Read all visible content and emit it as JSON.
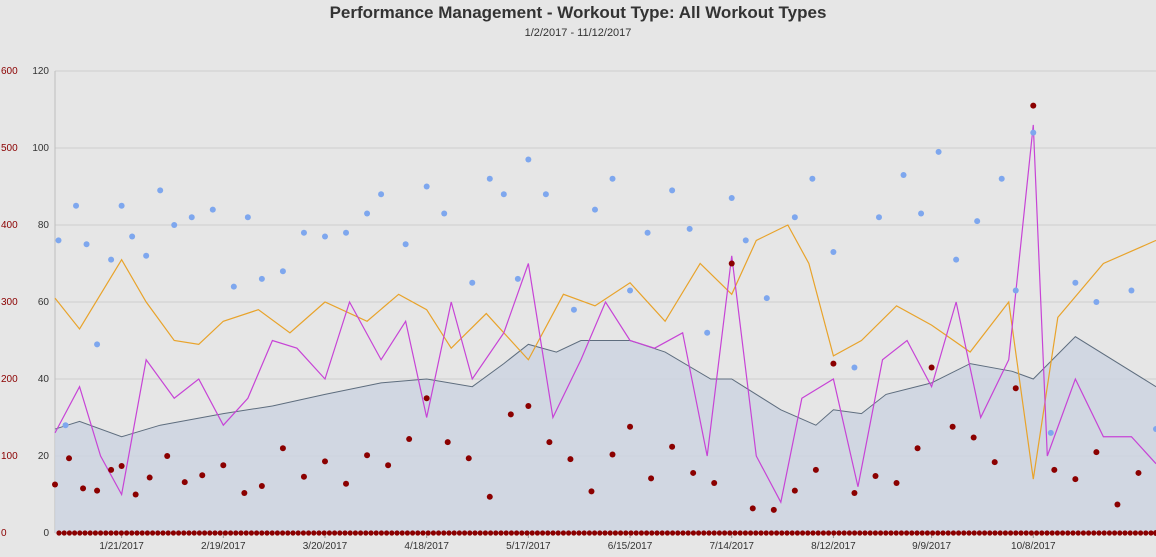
{
  "chart_data": {
    "type": "line",
    "title": "Performance Management - Workout Type: All Workout Types",
    "subtitle": "1/2/2017 - 11/12/2017",
    "x_range": [
      "1/2/2017",
      "11/12/2017"
    ],
    "x_ticks": [
      "1/21/2017",
      "2/19/2017",
      "3/20/2017",
      "4/18/2017",
      "5/17/2017",
      "6/15/2017",
      "7/14/2017",
      "8/12/2017",
      "9/9/2017",
      "10/8/2017"
    ],
    "y_left_outer": {
      "ticks": [
        "0",
        "100",
        "200",
        "300",
        "400",
        "500",
        "600"
      ],
      "range": [
        0,
        600
      ],
      "color": "#8b0000"
    },
    "y_left_inner": {
      "ticks": [
        "0",
        "20",
        "40",
        "60",
        "80",
        "100",
        "120"
      ],
      "range": [
        0,
        120
      ],
      "color": "#333333"
    },
    "grid": true,
    "colors": {
      "fitness_area": "#cdd3e0",
      "fitness_line": "#5e6d7e",
      "orange_line": "#e8a32b",
      "purple_line": "#c744d6",
      "blue_points": "#7ea7ee",
      "red_points": "#8b0000"
    },
    "series": [
      {
        "type": "area",
        "color": "#5e6d7e",
        "x": [
          "1/2/2017",
          "1/9/2017",
          "1/21/2017",
          "2/1/2017",
          "2/19/2017",
          "3/5/2017",
          "3/20/2017",
          "4/5/2017",
          "4/18/2017",
          "5/1/2017",
          "5/10/2017",
          "5/17/2017",
          "5/25/2017",
          "6/1/2017",
          "6/15/2017",
          "6/25/2017",
          "7/8/2017",
          "7/14/2017",
          "7/28/2017",
          "8/7/2017",
          "8/12/2017",
          "8/20/2017",
          "8/27/2017",
          "9/9/2017",
          "9/20/2017",
          "10/2/2017",
          "10/8/2017",
          "10/20/2017",
          "11/12/2017"
        ],
        "y": [
          27,
          29,
          25,
          28,
          31,
          33,
          36,
          39,
          40,
          38,
          44,
          49,
          47,
          50,
          50,
          47,
          40,
          40,
          32,
          28,
          32,
          31,
          36,
          39,
          44,
          42,
          40,
          51,
          38
        ]
      },
      {
        "type": "line",
        "color": "#e8a32b",
        "x": [
          "1/2/2017",
          "1/9/2017",
          "1/21/2017",
          "1/28/2017",
          "2/5/2017",
          "2/12/2017",
          "2/19/2017",
          "3/1/2017",
          "3/10/2017",
          "3/20/2017",
          "4/1/2017",
          "4/10/2017",
          "4/18/2017",
          "4/25/2017",
          "5/5/2017",
          "5/17/2017",
          "5/27/2017",
          "6/5/2017",
          "6/15/2017",
          "6/25/2017",
          "7/5/2017",
          "7/14/2017",
          "7/21/2017",
          "7/30/2017",
          "8/5/2017",
          "8/12/2017",
          "8/20/2017",
          "8/30/2017",
          "9/9/2017",
          "9/20/2017",
          "10/1/2017",
          "10/8/2017",
          "10/15/2017",
          "10/28/2017",
          "11/12/2017"
        ],
        "y": [
          61,
          53,
          71,
          60,
          50,
          49,
          55,
          58,
          52,
          60,
          55,
          62,
          58,
          48,
          57,
          45,
          62,
          59,
          65,
          55,
          70,
          62,
          76,
          80,
          70,
          46,
          50,
          59,
          54,
          47,
          60,
          14,
          56,
          70,
          76
        ]
      },
      {
        "type": "line",
        "color": "#c744d6",
        "x": [
          "1/2/2017",
          "1/9/2017",
          "1/15/2017",
          "1/21/2017",
          "1/28/2017",
          "2/5/2017",
          "2/12/2017",
          "2/19/2017",
          "2/26/2017",
          "3/5/2017",
          "3/12/2017",
          "3/20/2017",
          "3/27/2017",
          "4/5/2017",
          "4/12/2017",
          "4/18/2017",
          "4/25/2017",
          "5/1/2017",
          "5/10/2017",
          "5/17/2017",
          "5/24/2017",
          "6/1/2017",
          "6/8/2017",
          "6/15/2017",
          "6/22/2017",
          "6/30/2017",
          "7/7/2017",
          "7/14/2017",
          "7/21/2017",
          "7/28/2017",
          "8/3/2017",
          "8/12/2017",
          "8/19/2017",
          "8/26/2017",
          "9/2/2017",
          "9/9/2017",
          "9/16/2017",
          "9/23/2017",
          "10/1/2017",
          "10/8/2017",
          "10/12/2017",
          "10/20/2017",
          "10/28/2017",
          "11/5/2017",
          "11/12/2017"
        ],
        "y": [
          26,
          38,
          20,
          10,
          45,
          35,
          40,
          28,
          35,
          50,
          48,
          40,
          60,
          45,
          55,
          30,
          60,
          40,
          52,
          70,
          30,
          45,
          60,
          50,
          48,
          52,
          20,
          72,
          20,
          8,
          35,
          40,
          12,
          45,
          50,
          38,
          60,
          30,
          45,
          106,
          20,
          40,
          25,
          25,
          18
        ]
      },
      {
        "type": "scatter",
        "color": "#7ea7ee",
        "x": [
          "1/3/2017",
          "1/5/2017",
          "1/8/2017",
          "1/11/2017",
          "1/14/2017",
          "1/18/2017",
          "1/21/2017",
          "1/24/2017",
          "1/28/2017",
          "2/1/2017",
          "2/5/2017",
          "2/10/2017",
          "2/16/2017",
          "2/22/2017",
          "2/26/2017",
          "3/2/2017",
          "3/8/2017",
          "3/14/2017",
          "3/20/2017",
          "3/26/2017",
          "4/1/2017",
          "4/5/2017",
          "4/12/2017",
          "4/18/2017",
          "4/23/2017",
          "5/1/2017",
          "5/6/2017",
          "5/10/2017",
          "5/14/2017",
          "5/17/2017",
          "5/22/2017",
          "5/30/2017",
          "6/5/2017",
          "6/10/2017",
          "6/15/2017",
          "6/20/2017",
          "6/27/2017",
          "7/2/2017",
          "7/7/2017",
          "7/14/2017",
          "7/18/2017",
          "7/24/2017",
          "8/1/2017",
          "8/6/2017",
          "8/12/2017",
          "8/18/2017",
          "8/25/2017",
          "9/1/2017",
          "9/6/2017",
          "9/11/2017",
          "9/16/2017",
          "9/22/2017",
          "9/29/2017",
          "10/3/2017",
          "10/8/2017",
          "10/13/2017",
          "10/20/2017",
          "10/26/2017",
          "11/5/2017",
          "11/12/2017"
        ],
        "y": [
          76,
          28,
          85,
          75,
          49,
          71,
          85,
          77,
          72,
          89,
          80,
          82,
          84,
          64,
          82,
          66,
          68,
          78,
          77,
          78,
          83,
          88,
          75,
          90,
          83,
          65,
          92,
          88,
          66,
          97,
          88,
          58,
          84,
          92,
          63,
          78,
          89,
          79,
          52,
          87,
          76,
          61,
          82,
          92,
          73,
          43,
          82,
          93,
          83,
          99,
          71,
          81,
          92,
          63,
          104,
          26,
          65,
          60,
          63,
          27
        ]
      },
      {
        "type": "scatter",
        "color": "#8b0000",
        "x": [
          "1/2/2017",
          "1/6/2017",
          "1/10/2017",
          "1/14/2017",
          "1/18/2017",
          "1/21/2017",
          "1/25/2017",
          "1/29/2017",
          "2/3/2017",
          "2/8/2017",
          "2/13/2017",
          "2/19/2017",
          "2/25/2017",
          "3/2/2017",
          "3/8/2017",
          "3/14/2017",
          "3/20/2017",
          "3/26/2017",
          "4/1/2017",
          "4/7/2017",
          "4/13/2017",
          "4/18/2017",
          "4/24/2017",
          "4/30/2017",
          "5/6/2017",
          "5/12/2017",
          "5/17/2017",
          "5/23/2017",
          "5/29/2017",
          "6/4/2017",
          "6/10/2017",
          "6/15/2017",
          "6/21/2017",
          "6/27/2017",
          "7/3/2017",
          "7/9/2017",
          "7/14/2017",
          "7/20/2017",
          "7/26/2017",
          "8/1/2017",
          "8/7/2017",
          "8/12/2017",
          "8/18/2017",
          "8/24/2017",
          "8/30/2017",
          "9/5/2017",
          "9/9/2017",
          "9/15/2017",
          "9/21/2017",
          "9/27/2017",
          "10/3/2017",
          "10/8/2017",
          "10/14/2017",
          "10/20/2017",
          "10/26/2017",
          "11/1/2017",
          "11/7/2017",
          "11/12/2017"
        ],
        "y": [
          63,
          97,
          58,
          55,
          82,
          87,
          50,
          72,
          100,
          66,
          75,
          88,
          52,
          61,
          110,
          73,
          93,
          64,
          101,
          88,
          122,
          175,
          118,
          97,
          47,
          154,
          165,
          118,
          96,
          54,
          102,
          138,
          71,
          112,
          78,
          65,
          350,
          32,
          30,
          55,
          82,
          220,
          52,
          74,
          65,
          110,
          215,
          138,
          124,
          92,
          188,
          555,
          82,
          70,
          105,
          37,
          78,
          0
        ]
      }
    ]
  }
}
